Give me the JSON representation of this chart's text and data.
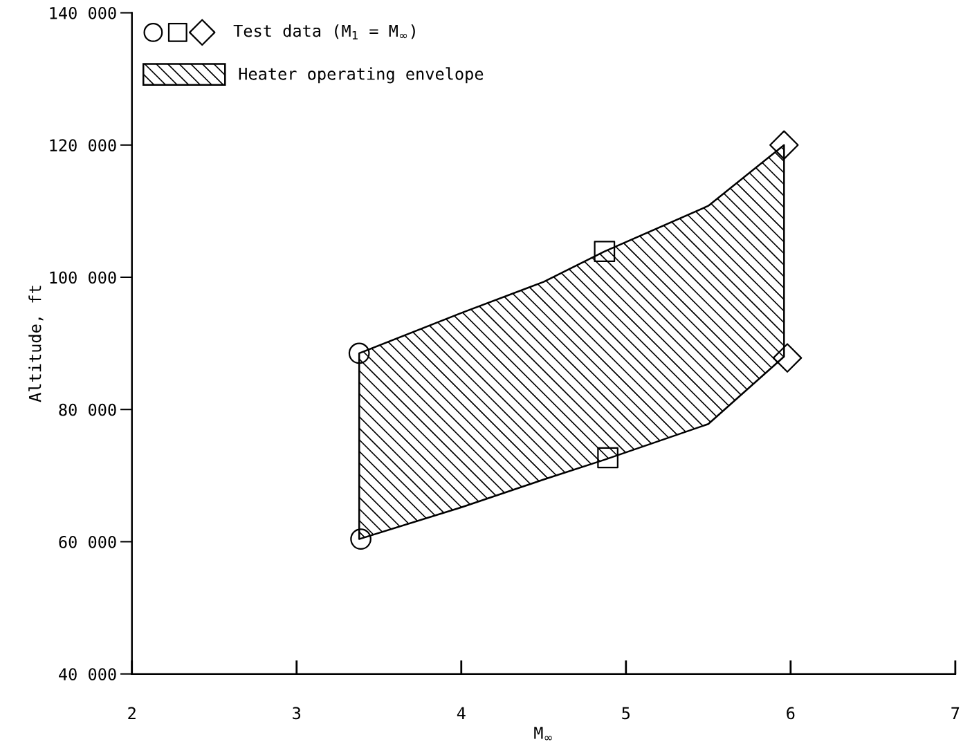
{
  "chart_data": {
    "type": "scatter",
    "xlabel": "M$_{∞}$",
    "ylabel": "Altitude, ft",
    "xlim": [
      2,
      7
    ],
    "xticks": [
      2,
      3,
      4,
      5,
      6,
      7
    ],
    "ylim": [
      40000,
      140000
    ],
    "yticks": [
      {
        "value": 40000,
        "label": "40 000"
      },
      {
        "value": 60000,
        "label": "60 000"
      },
      {
        "value": 80000,
        "label": "80 000"
      },
      {
        "value": 100000,
        "label": "100 000"
      },
      {
        "value": 120000,
        "label": "120 000"
      },
      {
        "value": 140000,
        "label": "140 000"
      }
    ],
    "grid": false,
    "legend": "top left",
    "line_style": "solid",
    "series": [
      {
        "type": "scatter",
        "marker": "circle",
        "color": "#000000",
        "x": [
          3.38,
          3.39
        ],
        "values": [
          88500,
          60400
        ]
      },
      {
        "type": "scatter",
        "marker": "square",
        "color": "#000000",
        "x": [
          4.87,
          4.89
        ],
        "values": [
          103900,
          72700
        ]
      },
      {
        "name": "Test data (M$_{1}$ = M$_{∞}$)",
        "type": "scatter",
        "marker": "diamond",
        "color": "#000000",
        "x": [
          5.96,
          5.98
        ],
        "values": [
          120000,
          87800
        ]
      },
      {
        "name": "Heater operating envelope",
        "type": "line",
        "color": "#000000",
        "x": [
          3.38,
          4,
          4.5,
          4.87,
          5.5,
          5.96
        ],
        "values": [
          null,
          null,
          null,
          null,
          null,
          null
        ],
        "upper": [
          88500,
          94600,
          99300,
          103900,
          110800,
          120000
        ],
        "lower": [
          60400,
          65200,
          69400,
          72400,
          77800,
          88000
        ]
      }
    ]
  }
}
